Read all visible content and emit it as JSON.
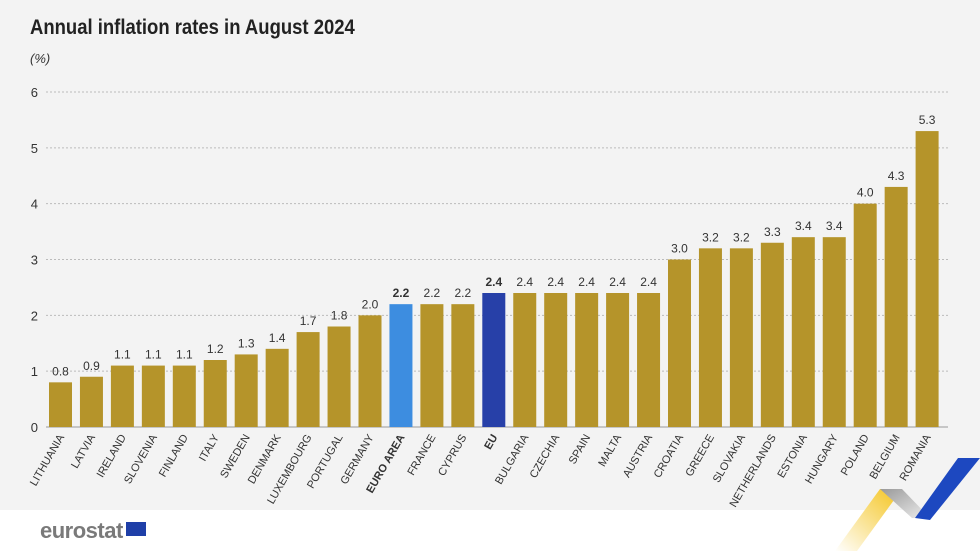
{
  "chart_data": {
    "type": "bar",
    "title": "Annual inflation rates in August 2024",
    "ylabel": "(%)",
    "ylim": [
      0,
      6
    ],
    "yticks": [
      0,
      1,
      2,
      3,
      4,
      5,
      6
    ],
    "grid": true,
    "categories": [
      "LITHUANIA",
      "LATVIA",
      "IRELAND",
      "SLOVENIA",
      "FINLAND",
      "ITALY",
      "SWEDEN",
      "DENMARK",
      "LUXEMBOURG",
      "PORTUGAL",
      "GERMANY",
      "EURO AREA",
      "FRANCE",
      "CYPRUS",
      "EU",
      "BULGARIA",
      "CZECHIA",
      "SPAIN",
      "MALTA",
      "AUSTRIA",
      "CROATIA",
      "GREECE",
      "SLOVAKIA",
      "NETHERLANDS",
      "ESTONIA",
      "HUNGARY",
      "POLAND",
      "BELGIUM",
      "ROMANIA"
    ],
    "values": [
      0.8,
      0.9,
      1.1,
      1.1,
      1.1,
      1.2,
      1.3,
      1.4,
      1.7,
      1.8,
      2.0,
      2.2,
      2.2,
      2.2,
      2.4,
      2.4,
      2.4,
      2.4,
      2.4,
      2.4,
      3.0,
      3.2,
      3.2,
      3.3,
      3.4,
      3.4,
      4.0,
      4.3,
      5.3
    ],
    "labels": [
      "0.8",
      "0.9",
      "1.1",
      "1.1",
      "1.1",
      "1.2",
      "1.3",
      "1.4",
      "1.7",
      "1.8",
      "2.0",
      "2.2",
      "2.2",
      "2.2",
      "2.4",
      "2.4",
      "2.4",
      "2.4",
      "2.4",
      "2.4",
      "3.0",
      "3.2",
      "3.2",
      "3.3",
      "3.4",
      "3.4",
      "4.0",
      "4.3",
      "5.3"
    ],
    "highlight": {
      "EURO AREA": "#3d8de0",
      "EU": "#2740a8"
    },
    "bar_color": "#b5942a"
  },
  "brand": {
    "logo": "eurostat"
  }
}
